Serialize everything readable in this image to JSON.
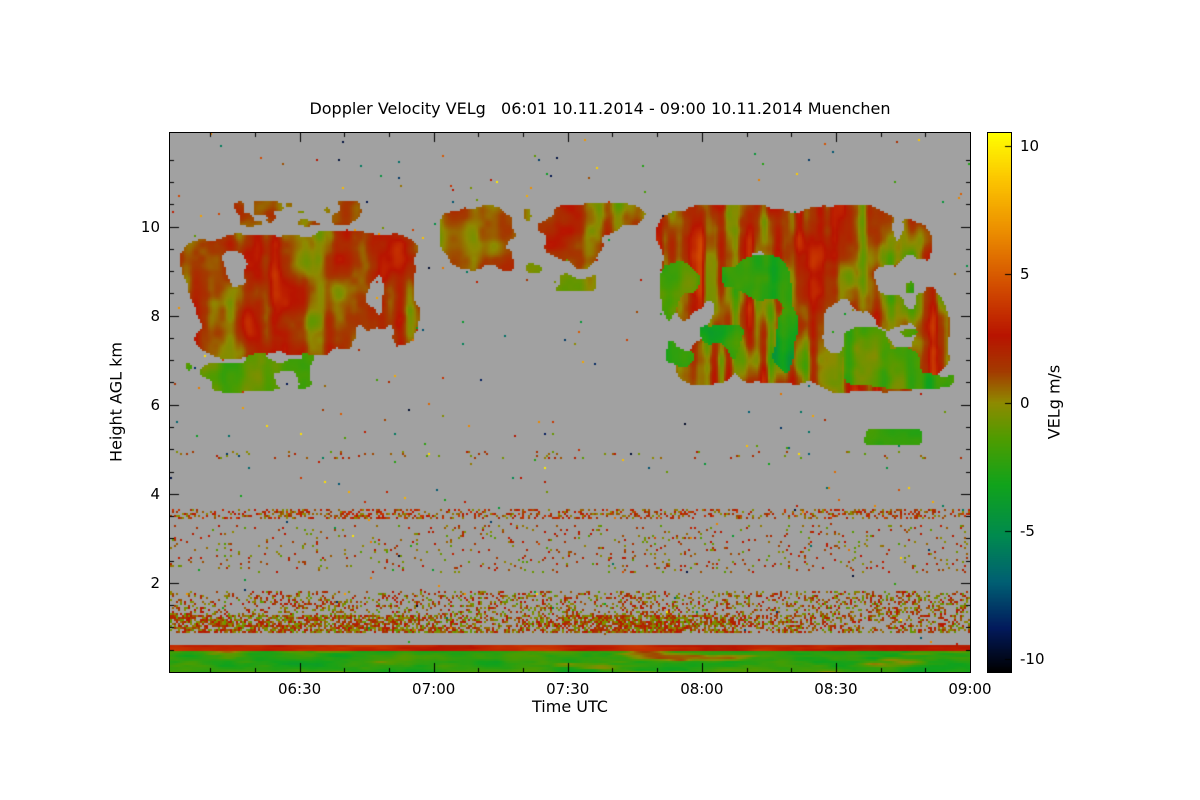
{
  "chart_data": {
    "type": "heatmap",
    "title": "Doppler Velocity VELg   06:01 10.11.2014 - 09:00 10.11.2014 Muenchen",
    "xlabel": "Time UTC",
    "ylabel": "Height AGL km",
    "x_range_hours": [
      6.0167,
      9.0
    ],
    "y_range_km": [
      0,
      12.1
    ],
    "x_ticks": [
      {
        "hour": 6.5,
        "label": "06:30"
      },
      {
        "hour": 7.0,
        "label": "07:00"
      },
      {
        "hour": 7.5,
        "label": "07:30"
      },
      {
        "hour": 8.0,
        "label": "08:00"
      },
      {
        "hour": 8.5,
        "label": "08:30"
      },
      {
        "hour": 9.0,
        "label": "09:00"
      }
    ],
    "y_ticks": [
      {
        "km": 2,
        "label": "2"
      },
      {
        "km": 4,
        "label": "4"
      },
      {
        "km": 6,
        "label": "6"
      },
      {
        "km": 8,
        "label": "8"
      },
      {
        "km": 10,
        "label": "10"
      }
    ],
    "no_data_color": "#a1a1a1",
    "grid": false,
    "colorbar": {
      "label": "VELg m/s",
      "range": [
        -10.5,
        10.5
      ],
      "ticks": [
        {
          "v": 10,
          "label": "10"
        },
        {
          "v": 5,
          "label": "5"
        },
        {
          "v": 0,
          "label": "0"
        },
        {
          "v": -5,
          "label": "-5"
        },
        {
          "v": -10,
          "label": "-10"
        }
      ],
      "stops": [
        [
          -10.5,
          "#000000"
        ],
        [
          -8.8,
          "#021a5c"
        ],
        [
          -7.0,
          "#005f73"
        ],
        [
          -5.2,
          "#008a4f"
        ],
        [
          -3.2,
          "#11a31b"
        ],
        [
          -1.4,
          "#4f9c00"
        ],
        [
          0.0,
          "#8f8a00"
        ],
        [
          1.2,
          "#a33b00"
        ],
        [
          2.6,
          "#b81400"
        ],
        [
          4.6,
          "#d34f00"
        ],
        [
          6.6,
          "#eb8c00"
        ],
        [
          8.6,
          "#fbc300"
        ],
        [
          10.5,
          "#ffff00"
        ]
      ]
    },
    "sparse_noise_density": 0.0035,
    "features": [
      {
        "kind": "cloud",
        "name": "west-cloud-main",
        "t0": 6.0,
        "t1": 7.05,
        "z0": 6.75,
        "z1": 10.15,
        "thr": 0.33,
        "base": 1.3,
        "spread": 2.0,
        "pT": 5.5,
        "pZ": 0.75,
        "vT": 9,
        "vZ": 1.4,
        "stT": 30,
        "stZ": 0.5,
        "stA": 1.5,
        "seed": 1
      },
      {
        "kind": "cloud",
        "name": "west-cloud-lower-green-fringe",
        "t0": 6.0,
        "t1": 6.62,
        "z0": 6.15,
        "z1": 7.35,
        "thr": 0.44,
        "base": -1.4,
        "spread": 1.4,
        "pT": 6,
        "pZ": 1.2,
        "vT": 9,
        "vZ": 1.5,
        "stT": 25,
        "stZ": 0.6,
        "stA": 0.8,
        "seed": 2
      },
      {
        "kind": "cloud",
        "name": "west-cloud-top-fragments",
        "t0": 6.2,
        "t1": 6.8,
        "z0": 9.9,
        "z1": 10.7,
        "thr": 0.5,
        "base": 0.9,
        "spread": 1.6,
        "pT": 7,
        "pZ": 1.5,
        "vT": 9,
        "vZ": 1.5,
        "stT": 25,
        "stZ": 0.5,
        "stA": 1.0,
        "seed": 3
      },
      {
        "kind": "cloud",
        "name": "mid-cirrus-fragments",
        "t0": 6.95,
        "t1": 7.88,
        "z0": 8.75,
        "z1": 10.7,
        "thr": 0.45,
        "base": 1.0,
        "spread": 1.8,
        "pT": 6,
        "pZ": 1.1,
        "vT": 9,
        "vZ": 1.4,
        "stT": 28,
        "stZ": 0.5,
        "stA": 1.2,
        "seed": 4
      },
      {
        "kind": "cloud",
        "name": "mid-cirrus-green-patches",
        "t0": 7.28,
        "t1": 7.65,
        "z0": 8.4,
        "z1": 9.55,
        "thr": 0.5,
        "base": -0.9,
        "spread": 1.3,
        "pT": 7,
        "pZ": 1.3,
        "vT": 9,
        "vZ": 1.4,
        "stT": 25,
        "stZ": 0.5,
        "stA": 0.8,
        "seed": 5
      },
      {
        "kind": "cloud",
        "name": "east-cloud-main",
        "t0": 7.74,
        "t1": 9.01,
        "z0": 5.9,
        "z1": 10.9,
        "thr": 0.35,
        "base": 1.3,
        "spread": 2.3,
        "pT": 5,
        "pZ": 0.7,
        "vT": 8,
        "vZ": 1.2,
        "stT": 38,
        "stZ": 0.45,
        "stA": 2.6,
        "seed": 6
      },
      {
        "kind": "cloud",
        "name": "east-cloud-green-core",
        "t0": 7.8,
        "t1": 8.4,
        "z0": 5.95,
        "z1": 9.7,
        "thr": 0.4,
        "base": -2.6,
        "spread": 1.7,
        "pT": 5,
        "pZ": 0.8,
        "vT": 9,
        "vZ": 1.3,
        "stT": 30,
        "stZ": 0.5,
        "stA": 1.2,
        "seed": 7
      },
      {
        "kind": "cloud",
        "name": "east-cloud-green-right",
        "t0": 8.48,
        "t1": 9.01,
        "z0": 6.15,
        "z1": 7.95,
        "thr": 0.47,
        "base": -1.8,
        "spread": 1.6,
        "pT": 6,
        "pZ": 1.0,
        "vT": 9,
        "vZ": 1.3,
        "stT": 30,
        "stZ": 0.5,
        "stA": 1.4,
        "seed": 8
      },
      {
        "kind": "cloud",
        "name": "small-green-blob-5km",
        "t0": 8.58,
        "t1": 8.85,
        "z0": 5.05,
        "z1": 5.5,
        "thr": 0.34,
        "base": -2.2,
        "spread": 1.0,
        "pT": 8,
        "pZ": 2.5,
        "vT": 10,
        "vZ": 2,
        "stT": 20,
        "stZ": 1,
        "stA": 0.5,
        "seed": 9
      },
      {
        "kind": "speckle",
        "name": "aerosol-layer-3p5km",
        "t0": 6.0,
        "t1": 9.01,
        "z0": 3.42,
        "z1": 3.66,
        "density": 0.34,
        "base": 1.8,
        "spread": 2.2,
        "clump": 3.5,
        "seed": 10
      },
      {
        "kind": "speckle",
        "name": "aerosol-layer-2to3km",
        "t0": 6.0,
        "t1": 9.01,
        "z0": 2.2,
        "z1": 3.3,
        "density": 0.06,
        "base": 0.9,
        "spread": 2.2,
        "clump": 4,
        "seed": 11
      },
      {
        "kind": "speckle",
        "name": "aerosol-layer-4p8km",
        "t0": 6.0,
        "t1": 9.01,
        "z0": 4.76,
        "z1": 4.95,
        "density": 0.05,
        "base": 0.6,
        "spread": 1.8,
        "clump": 3,
        "seed": 12
      },
      {
        "kind": "speckle",
        "name": "boundary-layer-1p5km",
        "t0": 6.0,
        "t1": 9.01,
        "z0": 1.28,
        "z1": 1.8,
        "density": 0.26,
        "base": 0.8,
        "spread": 2.0,
        "clump": 3,
        "seed": 13
      },
      {
        "kind": "speckle",
        "name": "boundary-layer-1km",
        "t0": 6.0,
        "t1": 9.01,
        "z0": 0.86,
        "z1": 1.28,
        "density": 0.55,
        "base": 0.9,
        "spread": 2.0,
        "clump": 3,
        "seed": 14
      },
      {
        "kind": "band",
        "name": "surface-red-line",
        "t0": 6.0,
        "t1": 9.01,
        "z0": 0.46,
        "z1": 0.62,
        "base": 3.0,
        "spread": 1.4,
        "fT": 6,
        "fZ": 8,
        "seed": 15
      },
      {
        "kind": "band",
        "name": "surface-green-band",
        "t0": 6.0,
        "t1": 9.01,
        "z0": 0.0,
        "z1": 0.46,
        "base": -2.4,
        "spread": 1.8,
        "fT": 7,
        "fZ": 6,
        "redA": 15,
        "seed": 16
      }
    ]
  }
}
